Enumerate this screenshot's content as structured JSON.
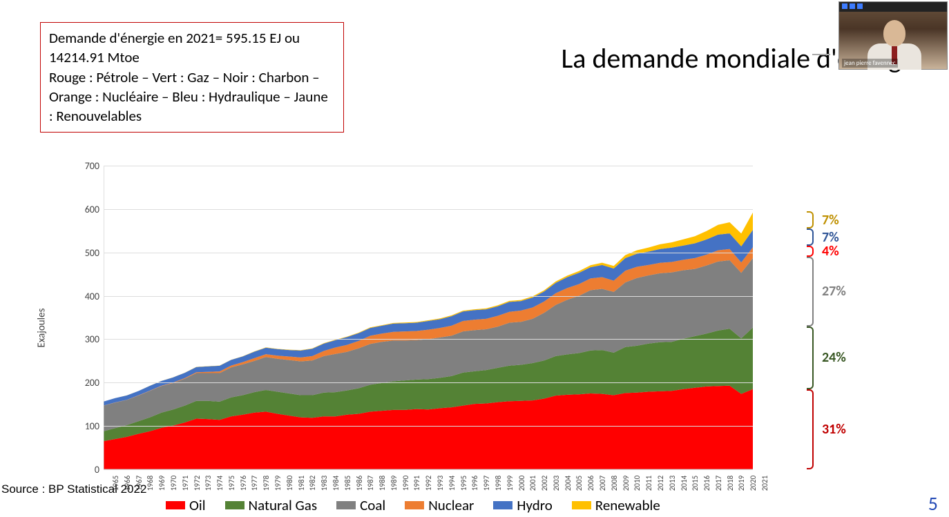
{
  "title": "La demande mondiale d'énergie",
  "info_box": "Demande d'énergie en 2021= 595.15 EJ ou 14214.91 Mtoe\nRouge : Pétrole – Vert : Gaz – Noir : Charbon – Orange : Nucléaire – Bleu : Hydraulique – Jaune : Renouvelables",
  "source": "Source : BP Statistical 2022",
  "page_number": "5",
  "webcam_name": "jean pierre favennec",
  "chart": {
    "type": "area-stacked",
    "yaxis_label": "Exajoules",
    "ylim": [
      0,
      700
    ],
    "ytick_step": 100,
    "background_color": "#ffffff",
    "grid_color": "#dddddd",
    "axis_color": "#bfbfbf",
    "tick_font_size": 14,
    "years": [
      1965,
      1966,
      1967,
      1968,
      1969,
      1970,
      1971,
      1972,
      1973,
      1974,
      1975,
      1976,
      1977,
      1978,
      1979,
      1980,
      1981,
      1982,
      1983,
      1984,
      1985,
      1986,
      1987,
      1988,
      1989,
      1990,
      1991,
      1992,
      1993,
      1994,
      1995,
      1996,
      1997,
      1998,
      1999,
      2000,
      2001,
      2002,
      2003,
      2004,
      2005,
      2006,
      2007,
      2008,
      2009,
      2010,
      2011,
      2012,
      2013,
      2014,
      2015,
      2016,
      2017,
      2018,
      2019,
      2020,
      2021
    ],
    "series": [
      {
        "key": "oil",
        "label": "Oil",
        "color": "#ff0000",
        "values": [
          65,
          70,
          75,
          82,
          88,
          96,
          101,
          108,
          117,
          116,
          114,
          122,
          126,
          131,
          133,
          128,
          124,
          120,
          119,
          122,
          122,
          126,
          128,
          133,
          135,
          137,
          137,
          139,
          138,
          141,
          143,
          147,
          151,
          152,
          155,
          157,
          158,
          159,
          163,
          170,
          172,
          173,
          175,
          174,
          171,
          176,
          177,
          179,
          180,
          181,
          185,
          188,
          191,
          192,
          193,
          174,
          185
        ]
      },
      {
        "key": "gas",
        "label": "Natural Gas",
        "color": "#548235",
        "values": [
          23,
          25,
          27,
          29,
          32,
          35,
          37,
          39,
          41,
          42,
          42,
          44,
          45,
          47,
          50,
          51,
          51,
          51,
          52,
          55,
          56,
          56,
          59,
          62,
          64,
          66,
          68,
          68,
          70,
          70,
          72,
          76,
          75,
          77,
          79,
          82,
          83,
          86,
          88,
          91,
          93,
          95,
          99,
          101,
          98,
          106,
          108,
          111,
          113,
          113,
          116,
          119,
          122,
          128,
          131,
          128,
          142
        ]
      },
      {
        "key": "coal",
        "label": "Coal",
        "color": "#808080",
        "values": [
          59,
          59,
          58,
          59,
          61,
          61,
          61,
          62,
          64,
          64,
          66,
          69,
          71,
          72,
          76,
          76,
          77,
          78,
          80,
          84,
          88,
          89,
          92,
          94,
          95,
          94,
          92,
          91,
          92,
          93,
          93,
          95,
          95,
          94,
          95,
          99,
          99,
          102,
          110,
          118,
          126,
          132,
          139,
          141,
          140,
          149,
          156,
          157,
          159,
          160,
          158,
          155,
          157,
          159,
          158,
          151,
          160
        ]
      },
      {
        "key": "nuclear",
        "label": "Nuclear",
        "color": "#ed7d31",
        "values": [
          0.2,
          0.3,
          0.4,
          0.5,
          0.6,
          0.8,
          1.1,
          1.5,
          2.0,
          2.6,
          3.8,
          4.3,
          5.3,
          6.3,
          6.5,
          7.1,
          8.1,
          8.9,
          10,
          12,
          15,
          16,
          17,
          19,
          19,
          20,
          21,
          21,
          22,
          22,
          23,
          24,
          24,
          24,
          25,
          25,
          26,
          26,
          26,
          27,
          27,
          27,
          27,
          27,
          26,
          27,
          26,
          24,
          24,
          24,
          24,
          25,
          25,
          26,
          26,
          24,
          25
        ]
      },
      {
        "key": "hydro",
        "label": "Hydro",
        "color": "#4472c4",
        "values": [
          9,
          10,
          10,
          10,
          11,
          11,
          12,
          12,
          12,
          13,
          13,
          13,
          13,
          15,
          15,
          15,
          15,
          16,
          17,
          17,
          17,
          18,
          18,
          18,
          18,
          19,
          19,
          19,
          20,
          20,
          22,
          22,
          22,
          22,
          22,
          23,
          22,
          23,
          23,
          24,
          25,
          26,
          26,
          28,
          28,
          29,
          30,
          31,
          32,
          33,
          33,
          34,
          35,
          36,
          36,
          37,
          40
        ]
      },
      {
        "key": "renewable",
        "label": "Renewable",
        "color": "#ffc000",
        "values": [
          0.1,
          0.1,
          0.1,
          0.1,
          0.2,
          0.2,
          0.2,
          0.3,
          0.3,
          0.3,
          0.4,
          0.4,
          0.5,
          0.6,
          0.6,
          0.7,
          0.8,
          0.8,
          0.9,
          1.0,
          1.0,
          1.1,
          1.1,
          1.2,
          1.3,
          1.4,
          1.5,
          1.6,
          1.7,
          1.8,
          1.9,
          1.9,
          2.0,
          2.1,
          2.3,
          2.4,
          2.4,
          2.7,
          2.9,
          3.2,
          3.6,
          4.0,
          4.6,
          5.3,
          5.9,
          6.9,
          8.0,
          9.3,
          10.8,
          12.3,
          14.2,
          16.4,
          19.4,
          22.5,
          25.6,
          29.8,
          39.9
        ]
      }
    ],
    "legend_font_size": 21,
    "annotations": [
      {
        "label": "7%",
        "color": "#bf9000",
        "top_ej": 595,
        "bottom_ej": 555
      },
      {
        "label": "7%",
        "color": "#2f5597",
        "top_ej": 555,
        "bottom_ej": 515
      },
      {
        "label": "4%",
        "color": "#ff0000",
        "top_ej": 515,
        "bottom_ej": 490
      },
      {
        "label": "27%",
        "color": "#808080",
        "top_ej": 490,
        "bottom_ej": 330
      },
      {
        "label": "24%",
        "color": "#385723",
        "top_ej": 330,
        "bottom_ej": 185
      },
      {
        "label": "31%",
        "color": "#c00000",
        "top_ej": 185,
        "bottom_ej": 0
      }
    ]
  }
}
